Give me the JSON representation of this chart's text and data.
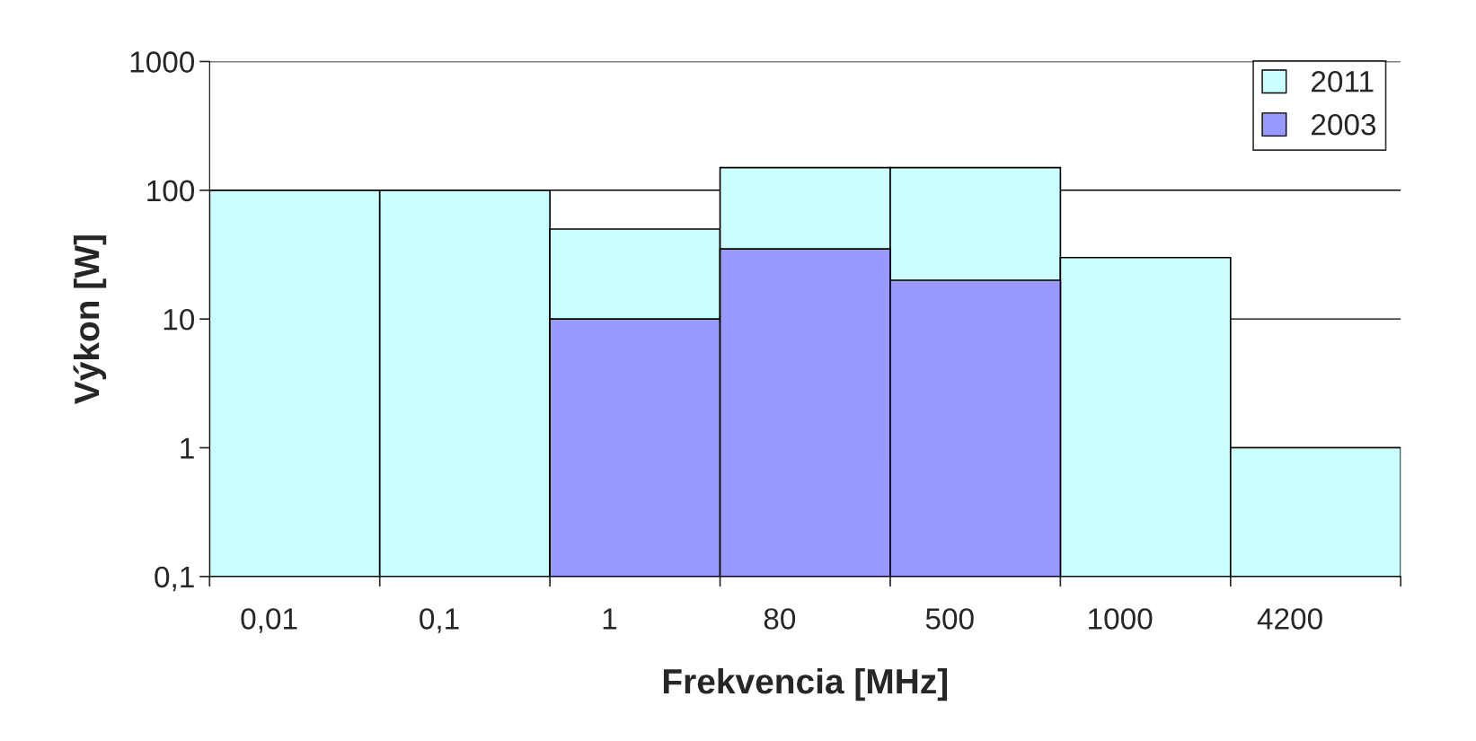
{
  "chart_data": {
    "type": "bar",
    "xlabel": "Frekvencia [MHz]",
    "ylabel": "Výkon [W]",
    "categories": [
      "0,01",
      "0,1",
      "1",
      "80",
      "500",
      "1000",
      "4200"
    ],
    "series": [
      {
        "name": "2011",
        "color": "#ccffff",
        "values": [
          100,
          100,
          50,
          150,
          150,
          30,
          1
        ]
      },
      {
        "name": "2003",
        "color": "#9999ff",
        "values": [
          null,
          null,
          10,
          35,
          20,
          null,
          null
        ]
      }
    ],
    "log": "y",
    "ylim": [
      0.1,
      1000
    ],
    "yticks": [
      {
        "value": 0.1,
        "label": "0,1"
      },
      1,
      10,
      100,
      1000
    ],
    "grid": "y",
    "legend": "top right"
  }
}
